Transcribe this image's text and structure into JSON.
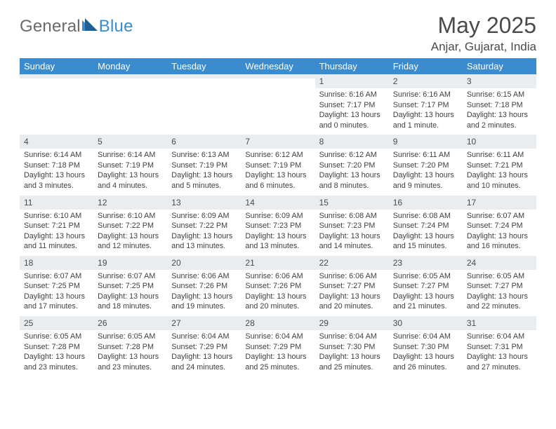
{
  "logo": {
    "part1": "General",
    "part2": "Blue"
  },
  "title": "May 2025",
  "location": "Anjar, Gujarat, India",
  "colors": {
    "header_bg": "#3a8ccf",
    "header_text": "#ffffff",
    "daynum_bg": "#e9edf0",
    "text": "#3f3f3f",
    "title": "#4a4a4a"
  },
  "fonts": {
    "title_size": 32,
    "location_size": 17,
    "weekday_size": 13,
    "daynum_size": 12,
    "body_size": 10.8
  },
  "weekdays": [
    "Sunday",
    "Monday",
    "Tuesday",
    "Wednesday",
    "Thursday",
    "Friday",
    "Saturday"
  ],
  "weeks": [
    [
      {
        "n": "",
        "sunrise": "",
        "sunset": "",
        "daylight": ""
      },
      {
        "n": "",
        "sunrise": "",
        "sunset": "",
        "daylight": ""
      },
      {
        "n": "",
        "sunrise": "",
        "sunset": "",
        "daylight": ""
      },
      {
        "n": "",
        "sunrise": "",
        "sunset": "",
        "daylight": ""
      },
      {
        "n": "1",
        "sunrise": "Sunrise: 6:16 AM",
        "sunset": "Sunset: 7:17 PM",
        "daylight": "Daylight: 13 hours and 0 minutes."
      },
      {
        "n": "2",
        "sunrise": "Sunrise: 6:16 AM",
        "sunset": "Sunset: 7:17 PM",
        "daylight": "Daylight: 13 hours and 1 minute."
      },
      {
        "n": "3",
        "sunrise": "Sunrise: 6:15 AM",
        "sunset": "Sunset: 7:18 PM",
        "daylight": "Daylight: 13 hours and 2 minutes."
      }
    ],
    [
      {
        "n": "4",
        "sunrise": "Sunrise: 6:14 AM",
        "sunset": "Sunset: 7:18 PM",
        "daylight": "Daylight: 13 hours and 3 minutes."
      },
      {
        "n": "5",
        "sunrise": "Sunrise: 6:14 AM",
        "sunset": "Sunset: 7:19 PM",
        "daylight": "Daylight: 13 hours and 4 minutes."
      },
      {
        "n": "6",
        "sunrise": "Sunrise: 6:13 AM",
        "sunset": "Sunset: 7:19 PM",
        "daylight": "Daylight: 13 hours and 5 minutes."
      },
      {
        "n": "7",
        "sunrise": "Sunrise: 6:12 AM",
        "sunset": "Sunset: 7:19 PM",
        "daylight": "Daylight: 13 hours and 6 minutes."
      },
      {
        "n": "8",
        "sunrise": "Sunrise: 6:12 AM",
        "sunset": "Sunset: 7:20 PM",
        "daylight": "Daylight: 13 hours and 8 minutes."
      },
      {
        "n": "9",
        "sunrise": "Sunrise: 6:11 AM",
        "sunset": "Sunset: 7:20 PM",
        "daylight": "Daylight: 13 hours and 9 minutes."
      },
      {
        "n": "10",
        "sunrise": "Sunrise: 6:11 AM",
        "sunset": "Sunset: 7:21 PM",
        "daylight": "Daylight: 13 hours and 10 minutes."
      }
    ],
    [
      {
        "n": "11",
        "sunrise": "Sunrise: 6:10 AM",
        "sunset": "Sunset: 7:21 PM",
        "daylight": "Daylight: 13 hours and 11 minutes."
      },
      {
        "n": "12",
        "sunrise": "Sunrise: 6:10 AM",
        "sunset": "Sunset: 7:22 PM",
        "daylight": "Daylight: 13 hours and 12 minutes."
      },
      {
        "n": "13",
        "sunrise": "Sunrise: 6:09 AM",
        "sunset": "Sunset: 7:22 PM",
        "daylight": "Daylight: 13 hours and 13 minutes."
      },
      {
        "n": "14",
        "sunrise": "Sunrise: 6:09 AM",
        "sunset": "Sunset: 7:23 PM",
        "daylight": "Daylight: 13 hours and 13 minutes."
      },
      {
        "n": "15",
        "sunrise": "Sunrise: 6:08 AM",
        "sunset": "Sunset: 7:23 PM",
        "daylight": "Daylight: 13 hours and 14 minutes."
      },
      {
        "n": "16",
        "sunrise": "Sunrise: 6:08 AM",
        "sunset": "Sunset: 7:24 PM",
        "daylight": "Daylight: 13 hours and 15 minutes."
      },
      {
        "n": "17",
        "sunrise": "Sunrise: 6:07 AM",
        "sunset": "Sunset: 7:24 PM",
        "daylight": "Daylight: 13 hours and 16 minutes."
      }
    ],
    [
      {
        "n": "18",
        "sunrise": "Sunrise: 6:07 AM",
        "sunset": "Sunset: 7:25 PM",
        "daylight": "Daylight: 13 hours and 17 minutes."
      },
      {
        "n": "19",
        "sunrise": "Sunrise: 6:07 AM",
        "sunset": "Sunset: 7:25 PM",
        "daylight": "Daylight: 13 hours and 18 minutes."
      },
      {
        "n": "20",
        "sunrise": "Sunrise: 6:06 AM",
        "sunset": "Sunset: 7:26 PM",
        "daylight": "Daylight: 13 hours and 19 minutes."
      },
      {
        "n": "21",
        "sunrise": "Sunrise: 6:06 AM",
        "sunset": "Sunset: 7:26 PM",
        "daylight": "Daylight: 13 hours and 20 minutes."
      },
      {
        "n": "22",
        "sunrise": "Sunrise: 6:06 AM",
        "sunset": "Sunset: 7:27 PM",
        "daylight": "Daylight: 13 hours and 20 minutes."
      },
      {
        "n": "23",
        "sunrise": "Sunrise: 6:05 AM",
        "sunset": "Sunset: 7:27 PM",
        "daylight": "Daylight: 13 hours and 21 minutes."
      },
      {
        "n": "24",
        "sunrise": "Sunrise: 6:05 AM",
        "sunset": "Sunset: 7:27 PM",
        "daylight": "Daylight: 13 hours and 22 minutes."
      }
    ],
    [
      {
        "n": "25",
        "sunrise": "Sunrise: 6:05 AM",
        "sunset": "Sunset: 7:28 PM",
        "daylight": "Daylight: 13 hours and 23 minutes."
      },
      {
        "n": "26",
        "sunrise": "Sunrise: 6:05 AM",
        "sunset": "Sunset: 7:28 PM",
        "daylight": "Daylight: 13 hours and 23 minutes."
      },
      {
        "n": "27",
        "sunrise": "Sunrise: 6:04 AM",
        "sunset": "Sunset: 7:29 PM",
        "daylight": "Daylight: 13 hours and 24 minutes."
      },
      {
        "n": "28",
        "sunrise": "Sunrise: 6:04 AM",
        "sunset": "Sunset: 7:29 PM",
        "daylight": "Daylight: 13 hours and 25 minutes."
      },
      {
        "n": "29",
        "sunrise": "Sunrise: 6:04 AM",
        "sunset": "Sunset: 7:30 PM",
        "daylight": "Daylight: 13 hours and 25 minutes."
      },
      {
        "n": "30",
        "sunrise": "Sunrise: 6:04 AM",
        "sunset": "Sunset: 7:30 PM",
        "daylight": "Daylight: 13 hours and 26 minutes."
      },
      {
        "n": "31",
        "sunrise": "Sunrise: 6:04 AM",
        "sunset": "Sunset: 7:31 PM",
        "daylight": "Daylight: 13 hours and 27 minutes."
      }
    ]
  ]
}
